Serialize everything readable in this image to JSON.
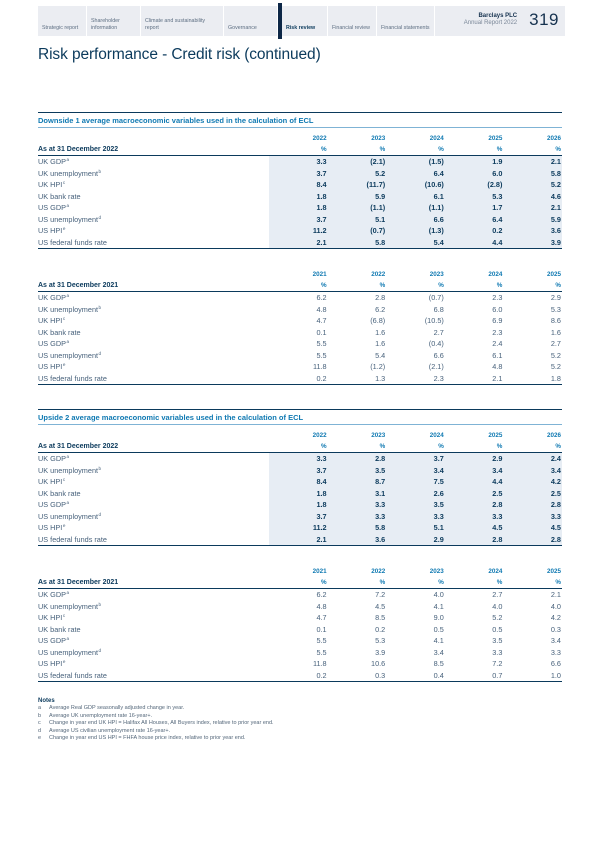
{
  "header": {
    "tabs": [
      {
        "label": "Strategic report",
        "active": false
      },
      {
        "label": "Shareholder information",
        "active": false
      },
      {
        "label": "Climate and sustainability report",
        "active": false
      },
      {
        "label": "Governance",
        "active": false
      },
      {
        "label": "Risk review",
        "active": true
      },
      {
        "label": "Financial review",
        "active": false
      },
      {
        "label": "Financial statements",
        "active": false
      }
    ],
    "brand_line1": "Barclays PLC",
    "brand_line2": "Annual Report 2022",
    "page_number": "319"
  },
  "page_title": "Risk performance - Credit risk (continued)",
  "tables": [
    {
      "heading": "Downside 1 average macroeconomic variables used in the calculation of ECL",
      "as_at": "As at 31 December 2022",
      "years": [
        "2022",
        "2023",
        "2024",
        "2025",
        "2026"
      ],
      "unit": "%",
      "shaded": true,
      "rows": [
        {
          "label": "UK GDP",
          "sup": "a",
          "values": [
            "3.3",
            "(2.1)",
            "(1.5)",
            "1.9",
            "2.1"
          ]
        },
        {
          "label": "UK unemployment",
          "sup": "b",
          "values": [
            "3.7",
            "5.2",
            "6.4",
            "6.0",
            "5.8"
          ]
        },
        {
          "label": "UK HPI",
          "sup": "c",
          "values": [
            "8.4",
            "(11.7)",
            "(10.6)",
            "(2.8)",
            "5.2"
          ]
        },
        {
          "label": "UK bank rate",
          "sup": "",
          "values": [
            "1.8",
            "5.9",
            "6.1",
            "5.3",
            "4.6"
          ]
        },
        {
          "label": "US GDP",
          "sup": "a",
          "values": [
            "1.8",
            "(1.1)",
            "(1.1)",
            "1.7",
            "2.1"
          ]
        },
        {
          "label": "US unemployment",
          "sup": "d",
          "values": [
            "3.7",
            "5.1",
            "6.6",
            "6.4",
            "5.9"
          ]
        },
        {
          "label": "US HPI",
          "sup": "e",
          "values": [
            "11.2",
            "(0.7)",
            "(1.3)",
            "0.2",
            "3.6"
          ]
        },
        {
          "label": "US federal funds rate",
          "sup": "",
          "values": [
            "2.1",
            "5.8",
            "5.4",
            "4.4",
            "3.9"
          ]
        }
      ]
    },
    {
      "heading": "",
      "as_at": "As at 31 December 2021",
      "years": [
        "2021",
        "2022",
        "2023",
        "2024",
        "2025"
      ],
      "unit": "%",
      "shaded": false,
      "rows": [
        {
          "label": "UK GDP",
          "sup": "a",
          "values": [
            "6.2",
            "2.8",
            "(0.7)",
            "2.3",
            "2.9"
          ]
        },
        {
          "label": "UK unemployment",
          "sup": "b",
          "values": [
            "4.8",
            "6.2",
            "6.8",
            "6.0",
            "5.3"
          ]
        },
        {
          "label": "UK HPI",
          "sup": "c",
          "values": [
            "4.7",
            "(6.8)",
            "(10.5)",
            "6.9",
            "8.6"
          ]
        },
        {
          "label": "UK bank rate",
          "sup": "",
          "values": [
            "0.1",
            "1.6",
            "2.7",
            "2.3",
            "1.6"
          ]
        },
        {
          "label": "US GDP",
          "sup": "a",
          "values": [
            "5.5",
            "1.6",
            "(0.4)",
            "2.4",
            "2.7"
          ]
        },
        {
          "label": "US unemployment",
          "sup": "d",
          "values": [
            "5.5",
            "5.4",
            "6.6",
            "6.1",
            "5.2"
          ]
        },
        {
          "label": "US HPI",
          "sup": "e",
          "values": [
            "11.8",
            "(1.2)",
            "(2.1)",
            "4.8",
            "5.2"
          ]
        },
        {
          "label": "US federal funds rate",
          "sup": "",
          "values": [
            "0.2",
            "1.3",
            "2.3",
            "2.1",
            "1.8"
          ]
        }
      ]
    },
    {
      "heading": "Upside 2 average macroeconomic variables used in the calculation of ECL",
      "as_at": "As at 31 December 2022",
      "years": [
        "2022",
        "2023",
        "2024",
        "2025",
        "2026"
      ],
      "unit": "%",
      "shaded": true,
      "rows": [
        {
          "label": "UK GDP",
          "sup": "a",
          "values": [
            "3.3",
            "2.8",
            "3.7",
            "2.9",
            "2.4"
          ]
        },
        {
          "label": "UK unemployment",
          "sup": "b",
          "values": [
            "3.7",
            "3.5",
            "3.4",
            "3.4",
            "3.4"
          ]
        },
        {
          "label": "UK HPI",
          "sup": "c",
          "values": [
            "8.4",
            "8.7",
            "7.5",
            "4.4",
            "4.2"
          ]
        },
        {
          "label": "UK bank rate",
          "sup": "",
          "values": [
            "1.8",
            "3.1",
            "2.6",
            "2.5",
            "2.5"
          ]
        },
        {
          "label": "US GDP",
          "sup": "a",
          "values": [
            "1.8",
            "3.3",
            "3.5",
            "2.8",
            "2.8"
          ]
        },
        {
          "label": "US unemployment",
          "sup": "d",
          "values": [
            "3.7",
            "3.3",
            "3.3",
            "3.3",
            "3.3"
          ]
        },
        {
          "label": "US HPI",
          "sup": "e",
          "values": [
            "11.2",
            "5.8",
            "5.1",
            "4.5",
            "4.5"
          ]
        },
        {
          "label": "US federal funds rate",
          "sup": "",
          "values": [
            "2.1",
            "3.6",
            "2.9",
            "2.8",
            "2.8"
          ]
        }
      ]
    },
    {
      "heading": "",
      "as_at": "As at 31 December 2021",
      "years": [
        "2021",
        "2022",
        "2023",
        "2024",
        "2025"
      ],
      "unit": "%",
      "shaded": false,
      "rows": [
        {
          "label": "UK GDP",
          "sup": "a",
          "values": [
            "6.2",
            "7.2",
            "4.0",
            "2.7",
            "2.1"
          ]
        },
        {
          "label": "UK unemployment",
          "sup": "b",
          "values": [
            "4.8",
            "4.5",
            "4.1",
            "4.0",
            "4.0"
          ]
        },
        {
          "label": "UK HPI",
          "sup": "c",
          "values": [
            "4.7",
            "8.5",
            "9.0",
            "5.2",
            "4.2"
          ]
        },
        {
          "label": "UK bank rate",
          "sup": "",
          "values": [
            "0.1",
            "0.2",
            "0.5",
            "0.5",
            "0.3"
          ]
        },
        {
          "label": "US GDP",
          "sup": "a",
          "values": [
            "5.5",
            "5.3",
            "4.1",
            "3.5",
            "3.4"
          ]
        },
        {
          "label": "US unemployment",
          "sup": "d",
          "values": [
            "5.5",
            "3.9",
            "3.4",
            "3.3",
            "3.3"
          ]
        },
        {
          "label": "US HPI",
          "sup": "e",
          "values": [
            "11.8",
            "10.6",
            "8.5",
            "7.2",
            "6.6"
          ]
        },
        {
          "label": "US federal funds rate",
          "sup": "",
          "values": [
            "0.2",
            "0.3",
            "0.4",
            "0.7",
            "1.0"
          ]
        }
      ]
    }
  ],
  "notes": {
    "heading": "Notes",
    "items": [
      {
        "marker": "a",
        "text": "Average Real GDP seasonally adjusted change in year."
      },
      {
        "marker": "b",
        "text": "Average UK unemployment rate 16-year+."
      },
      {
        "marker": "c",
        "text": "Change in year end UK HPI = Halifax All Houses, All Buyers index, relative to prior year end."
      },
      {
        "marker": "d",
        "text": "Average US civilian unemployment rate 16-year+."
      },
      {
        "marker": "e",
        "text": "Change in year end US HPI = FHFA house price index, relative to prior year end."
      }
    ]
  },
  "colors": {
    "navy": "#0b3a5c",
    "heading_blue": "#0f79b2",
    "shaded_column": "#e7edf4",
    "tab_bar_bg": "#ebedf2",
    "active_tab_bar": "#0d2747"
  }
}
